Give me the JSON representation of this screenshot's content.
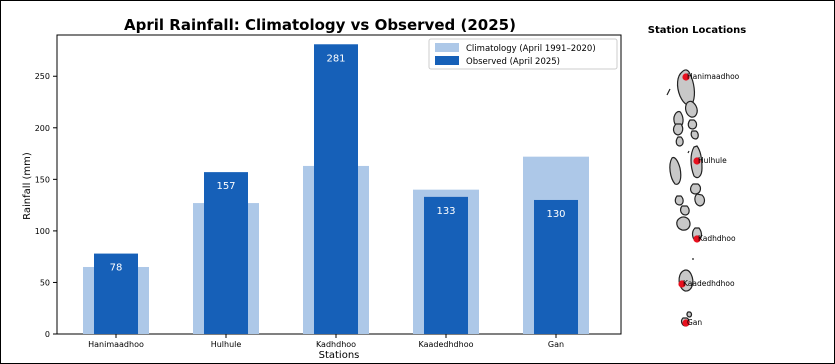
{
  "chart_data": {
    "type": "bar",
    "title": "April Rainfall: Climatology vs Observed (2025)",
    "xlabel": "Stations",
    "ylabel": "Rainfall (mm)",
    "categories": [
      "Hanimaadhoo",
      "Hulhule",
      "Kadhdhoo",
      "Kaadedhdhoo",
      "Gan"
    ],
    "ylim": [
      0,
      290
    ],
    "yticks": [
      0,
      50,
      100,
      150,
      200,
      250
    ],
    "grid": false,
    "legend_position": "top-right",
    "series": [
      {
        "name": "Climatology (April 1991–2020)",
        "values": [
          65,
          127,
          163,
          140,
          172
        ],
        "color": "#adc8e8"
      },
      {
        "name": "Observed (April 2025)",
        "values": [
          78,
          157,
          281,
          133,
          130
        ],
        "color": "#1660b8",
        "labels": [
          "78",
          "157",
          "281",
          "133",
          "130"
        ]
      }
    ]
  },
  "map": {
    "title": "Station Locations",
    "stations": [
      "Hanimaadhoo",
      "Hulhule",
      "Kadhdhoo",
      "Kaadedhdhoo",
      "Gan"
    ],
    "marker_color": "#e8101e",
    "island_fill": "#c8c8c8",
    "island_stroke": "#222222"
  }
}
